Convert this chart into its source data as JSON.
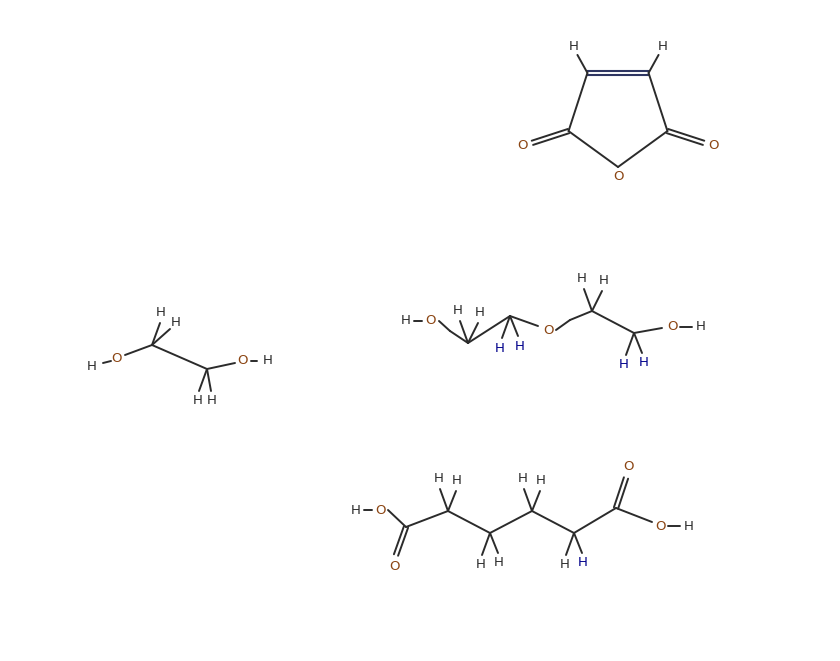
{
  "bg_color": "#ffffff",
  "line_color": "#2b2b2b",
  "atom_color_O": "#8B4513",
  "atom_color_H": "#2b2b2b",
  "atom_color_H_blue": "#00008B",
  "figsize": [
    8.4,
    6.61
  ],
  "dpi": 100,
  "xlim": [
    0,
    840
  ],
  "ylim": [
    0,
    661
  ]
}
